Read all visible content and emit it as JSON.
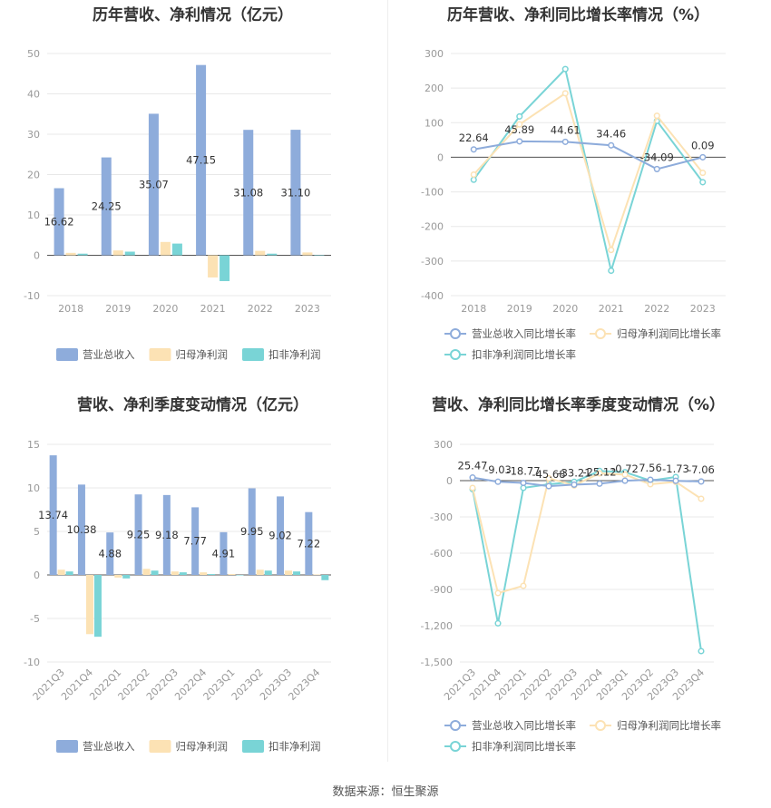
{
  "source": "数据来源：恒生聚源",
  "colors": {
    "blue": "#8EACDB",
    "orange": "#FCE2B4",
    "cyan": "#79D4D6",
    "grid": "#e8e8e8",
    "axis": "#555555"
  },
  "chart_data": [
    {
      "type": "bar",
      "title": "历年营收、净利情况（亿元）",
      "categories": [
        "2018",
        "2019",
        "2020",
        "2021",
        "2022",
        "2023"
      ],
      "ylim": [
        -10,
        50
      ],
      "yticks": [
        "50",
        "40",
        "30",
        "20",
        "10",
        "0",
        "-10"
      ],
      "series": [
        {
          "name": "营业总收入",
          "values": [
            16.62,
            24.25,
            35.07,
            47.15,
            31.08,
            31.1
          ],
          "labels": [
            "16.62",
            "24.25",
            "35.07",
            "47.15",
            "31.08",
            "31.10"
          ]
        },
        {
          "name": "归母净利润",
          "values": [
            0.6,
            1.2,
            3.3,
            -5.5,
            1.1,
            0.7
          ]
        },
        {
          "name": "扣非净利润",
          "values": [
            0.4,
            0.9,
            2.9,
            -6.4,
            0.4,
            0.1
          ]
        }
      ],
      "legend": "bottom"
    },
    {
      "type": "line",
      "title": "历年营收、净利同比增长率情况（%）",
      "categories": [
        "2018",
        "2019",
        "2020",
        "2021",
        "2022",
        "2023"
      ],
      "ylim": [
        -400,
        300
      ],
      "yticks": [
        "300",
        "200",
        "100",
        "0",
        "-100",
        "-200",
        "-300",
        "-400"
      ],
      "series": [
        {
          "name": "营业总收入同比增长率",
          "values": [
            22.64,
            45.89,
            44.61,
            34.46,
            -34.09,
            0.09
          ],
          "labels": [
            "22.64",
            "45.89",
            "44.61",
            "34.46",
            "-34.09",
            "0.09"
          ]
        },
        {
          "name": "归母净利润同比增长率",
          "values": [
            -50,
            95,
            185,
            -268,
            120,
            -45
          ]
        },
        {
          "name": "扣非净利润同比增长率",
          "values": [
            -65,
            118,
            255,
            -328,
            105,
            -72
          ]
        }
      ],
      "legend": "bottom"
    },
    {
      "type": "bar",
      "title": "营收、净利季度变动情况（亿元）",
      "categories": [
        "2021Q3",
        "2021Q4",
        "2022Q1",
        "2022Q2",
        "2022Q3",
        "2022Q4",
        "2023Q1",
        "2023Q2",
        "2023Q3",
        "2023Q4"
      ],
      "ylim": [
        -10,
        15
      ],
      "yticks": [
        "15",
        "10",
        "5",
        "0",
        "-5",
        "-10"
      ],
      "series": [
        {
          "name": "营业总收入",
          "values": [
            13.74,
            10.38,
            4.88,
            9.25,
            9.18,
            7.77,
            4.91,
            9.95,
            9.02,
            7.22
          ],
          "labels": [
            "13.74",
            "10.38",
            "4.88",
            "9.25",
            "9.18",
            "7.77",
            "4.91",
            "9.95",
            "9.02",
            "7.22"
          ]
        },
        {
          "name": "归母净利润",
          "values": [
            0.6,
            -6.8,
            -0.3,
            0.7,
            0.4,
            0.3,
            0.1,
            0.6,
            0.5,
            0.05
          ]
        },
        {
          "name": "扣非净利润",
          "values": [
            0.4,
            -7.1,
            -0.4,
            0.5,
            0.3,
            0.1,
            0.0,
            0.5,
            0.4,
            -0.6
          ]
        }
      ],
      "legend": "bottom"
    },
    {
      "type": "line",
      "title": "营收、净利同比增长率季度变动情况（%）",
      "categories": [
        "2021Q3",
        "2021Q4",
        "2022Q1",
        "2022Q2",
        "2022Q3",
        "2022Q4",
        "2023Q1",
        "2023Q2",
        "2023Q3",
        "2023Q4"
      ],
      "ylim": [
        -1500,
        300
      ],
      "yticks": [
        "300",
        "0",
        "-300",
        "-600",
        "-900",
        "-1,200",
        "-1,500"
      ],
      "series": [
        {
          "name": "营业总收入同比增长率",
          "values": [
            25.47,
            -9.03,
            -18.77,
            -45.68,
            -33.21,
            -25.12,
            -0.72,
            7.56,
            -1.73,
            -7.06
          ],
          "labels": [
            "25.47",
            "-9.03",
            "-18.77",
            "-45.68",
            "-33.21",
            "-25.12",
            "-0.72",
            "7.56",
            "-1.73",
            "-7.06"
          ]
        },
        {
          "name": "归母净利润同比增长率",
          "values": [
            -60,
            -930,
            -870,
            20,
            -40,
            60,
            50,
            -30,
            -10,
            -150
          ]
        },
        {
          "name": "扣非净利润同比增长率",
          "values": [
            -70,
            -1180,
            -60,
            -30,
            -10,
            80,
            70,
            0,
            30,
            -1410
          ]
        }
      ],
      "legend": "bottom"
    }
  ]
}
